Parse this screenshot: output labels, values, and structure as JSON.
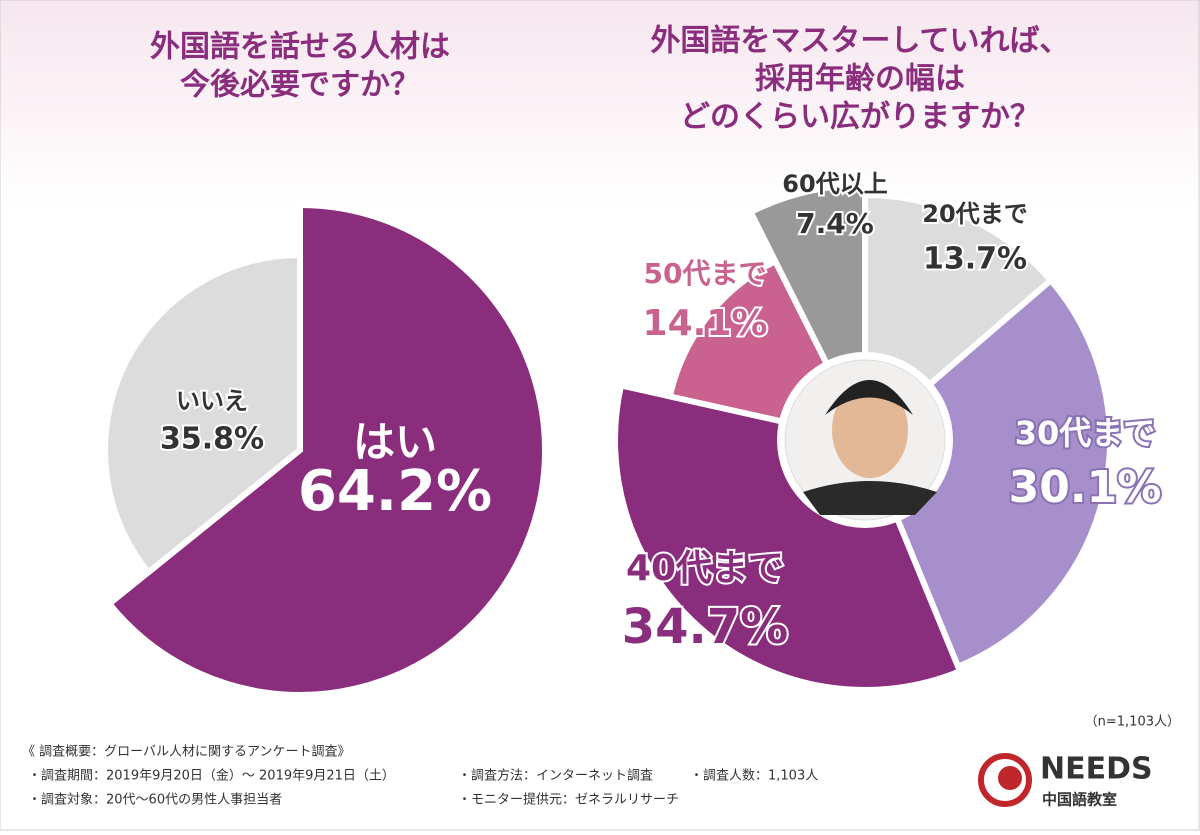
{
  "chart_data": [
    {
      "type": "pie",
      "title": [
        "外国語を話せる人材は",
        "今後必要ですか？"
      ],
      "categories": [
        "はい",
        "いいえ"
      ],
      "values": [
        64.2,
        35.8
      ],
      "value_labels": [
        "64.2%",
        "35.8%"
      ],
      "colors": [
        "#8b2d7d",
        "#dcdcdc"
      ]
    },
    {
      "type": "pie",
      "title": [
        "外国語をマスターしていれば、",
        "採用年齢の幅は",
        "どのくらい広がりますか？"
      ],
      "categories": [
        "20代まで",
        "30代まで",
        "40代まで",
        "50代まで",
        "60代以上"
      ],
      "values": [
        13.7,
        30.1,
        34.7,
        14.1,
        7.4
      ],
      "value_labels": [
        "13.7%",
        "30.1%",
        "34.7%",
        "14.1%",
        "7.4%"
      ],
      "colors": [
        "#dcdcdc",
        "#a68fca",
        "#8b2d7d",
        "#c9628f",
        "#999999"
      ]
    }
  ],
  "footer": {
    "sample": "（n=1,103人）",
    "notes": [
      "《 調査概要：グローバル人材に関するアンケート調査》",
      "・調査期間：2019年9月20日（金）～ 2019年9月21日（土）",
      "・調査方法：インターネット調査",
      "・調査人数：1,103人",
      "・調査対象：20代～60代の男性人事担当者",
      "・モニター提供元：ゼネラルリサーチ"
    ],
    "logo": "NEEDS",
    "logo_sub": "中国語教室"
  }
}
